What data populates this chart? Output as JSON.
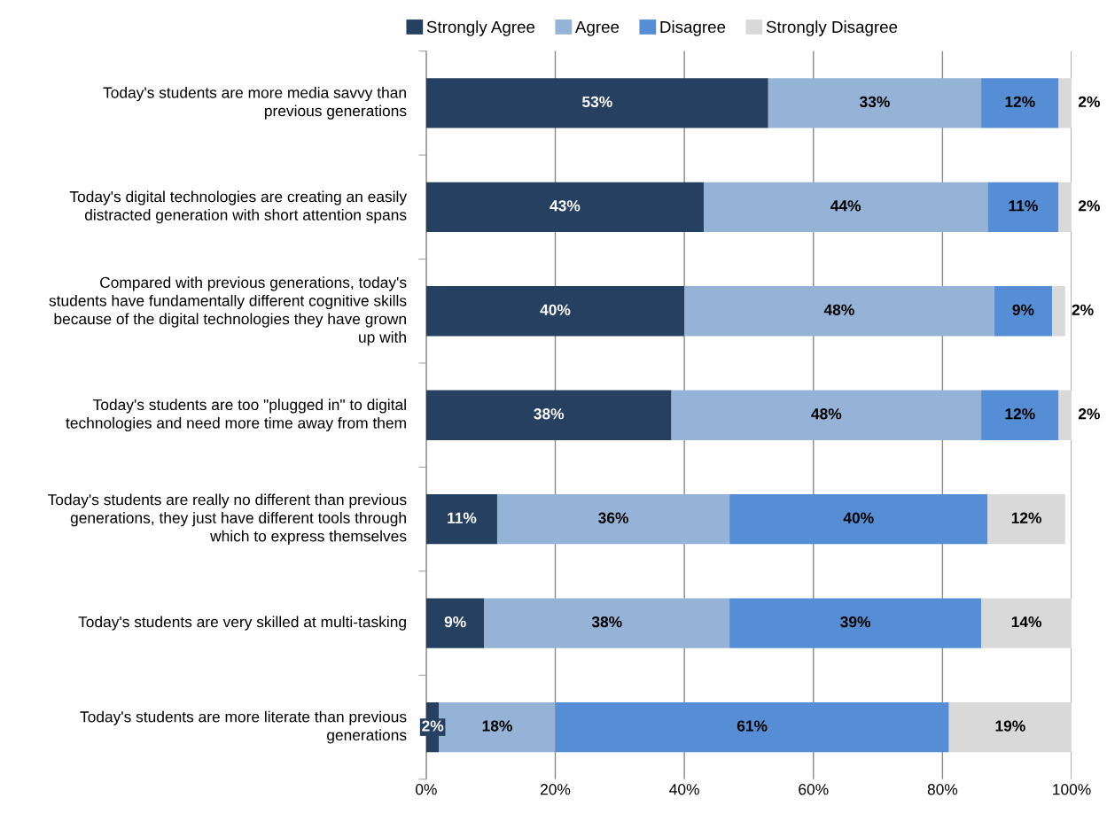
{
  "chart_data": {
    "type": "bar",
    "orientation": "horizontal",
    "stacked": true,
    "grid": "x",
    "legend": "top",
    "categories": [
      "Today's students are more media savvy than previous generations",
      "Today's digital technologies are creating an easily distracted generation with short attention spans",
      "Compared with previous generations, today's students have fundamentally different cognitive skills because of the digital technologies they have grown up with",
      "Today's students are too \"plugged in\" to digital technologies and need more time away from them",
      "Today's students are really no different than previous generations, they just have different tools through which to express themselves",
      "Today's students are very skilled at multi-tasking",
      "Today's students are more literate than previous generations"
    ],
    "series": [
      {
        "name": "Strongly Agree",
        "color": "#264061",
        "values": [
          53,
          43,
          40,
          38,
          11,
          9,
          2
        ],
        "value_labels": [
          "53%",
          "43%",
          "40%",
          "38%",
          "11%",
          "9%",
          "2%"
        ]
      },
      {
        "name": "Agree",
        "color": "#95b3d7",
        "values": [
          33,
          44,
          48,
          48,
          36,
          38,
          18
        ],
        "value_labels": [
          "33%",
          "44%",
          "48%",
          "48%",
          "36%",
          "38%",
          "18%"
        ]
      },
      {
        "name": "Disagree",
        "color": "#558ed5",
        "values": [
          12,
          11,
          9,
          12,
          40,
          39,
          61
        ],
        "value_labels": [
          "12%",
          "11%",
          "9%",
          "12%",
          "40%",
          "39%",
          "61%"
        ]
      },
      {
        "name": "Strongly Disagree",
        "color": "#d9d9d9",
        "values": [
          2,
          2,
          2,
          2,
          12,
          14,
          19
        ],
        "value_labels": [
          "2%",
          "2%",
          "2%",
          "2%",
          "12%",
          "14%",
          "19%"
        ]
      }
    ],
    "xlim": [
      0,
      100
    ],
    "xticks": [
      {
        "value": 0,
        "label": "0%"
      },
      {
        "value": 20,
        "label": "20%"
      },
      {
        "value": 40,
        "label": "40%"
      },
      {
        "value": 60,
        "label": "60%"
      },
      {
        "value": 80,
        "label": "80%"
      },
      {
        "value": 100,
        "label": "100%"
      }
    ]
  }
}
